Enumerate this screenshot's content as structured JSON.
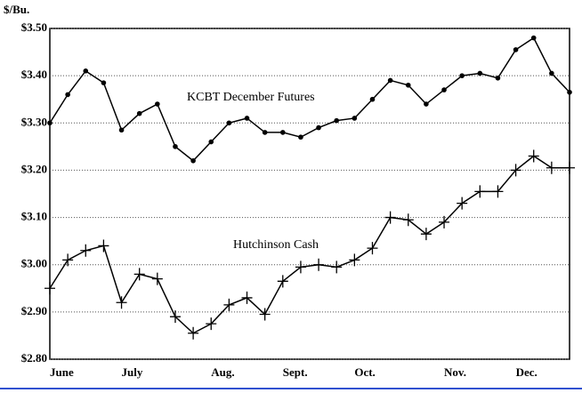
{
  "chart_data": {
    "type": "line",
    "y_label": "$/Bu.",
    "categories": [
      "June",
      null,
      null,
      null,
      "July",
      null,
      null,
      null,
      null,
      "Aug.",
      null,
      null,
      null,
      "Sept.",
      null,
      null,
      null,
      "Oct.",
      null,
      null,
      null,
      null,
      "Nov.",
      null,
      null,
      null,
      "Dec.",
      null,
      null,
      null
    ],
    "series": [
      {
        "name": "KCBT December Futures",
        "color": "#000000",
        "marker": "dot",
        "values": [
          3.3,
          3.36,
          3.41,
          3.385,
          3.285,
          3.32,
          3.34,
          3.25,
          3.22,
          3.26,
          3.3,
          3.31,
          3.28,
          3.28,
          3.27,
          3.29,
          3.305,
          3.31,
          3.35,
          3.39,
          3.38,
          3.34,
          3.37,
          3.4,
          3.405,
          3.395,
          3.455,
          3.48,
          3.405,
          3.365
        ]
      },
      {
        "name": "Hutchinson Cash",
        "color": "#000000",
        "marker": "plus",
        "values": [
          2.95,
          3.01,
          3.03,
          3.04,
          2.92,
          2.98,
          2.97,
          2.89,
          2.855,
          2.875,
          2.915,
          2.93,
          2.895,
          2.965,
          2.995,
          3.0,
          2.995,
          3.01,
          3.035,
          3.1,
          3.095,
          3.065,
          3.09,
          3.13,
          3.155,
          3.155,
          3.2,
          3.23,
          3.205,
          3.205
        ]
      }
    ],
    "ylim": [
      2.8,
      3.5
    ],
    "yticks": [
      {
        "value": 2.8,
        "label": "$2.80"
      },
      {
        "value": 2.9,
        "label": "$2.90"
      },
      {
        "value": 3.0,
        "label": "$3.00"
      },
      {
        "value": 3.1,
        "label": "$3.10"
      },
      {
        "value": 3.2,
        "label": "$3.20"
      },
      {
        "value": 3.3,
        "label": "$3.30"
      },
      {
        "value": 3.4,
        "label": "$3.40"
      },
      {
        "value": 3.5,
        "label": "$3.50"
      }
    ],
    "grid": true
  }
}
